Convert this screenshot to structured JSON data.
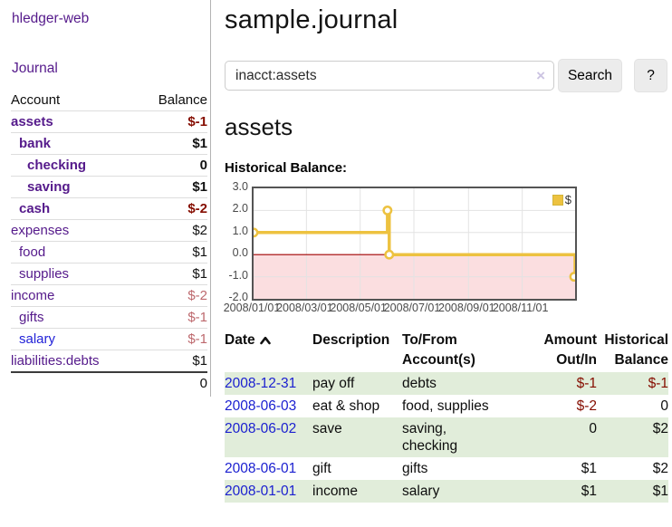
{
  "sidebar": {
    "brand": "hledger-web",
    "nav": {
      "journal": "Journal"
    },
    "accounts_table": {
      "headers": {
        "account": "Account",
        "balance": "Balance"
      },
      "rows": [
        {
          "name": "assets",
          "level": 1,
          "bold": true,
          "balance": "$-1",
          "tone": "neg-strong"
        },
        {
          "name": "bank",
          "level": 2,
          "bold": true,
          "balance": "$1",
          "tone": "pos"
        },
        {
          "name": "checking",
          "level": 3,
          "bold": true,
          "balance": "0",
          "tone": "pos"
        },
        {
          "name": "saving",
          "level": 3,
          "bold": true,
          "balance": "$1",
          "tone": "pos"
        },
        {
          "name": "cash",
          "level": 2,
          "bold": true,
          "balance": "$-2",
          "tone": "neg-strong"
        },
        {
          "name": "expenses",
          "level": 1,
          "bold": false,
          "balance": "$2",
          "tone": "pos"
        },
        {
          "name": "food",
          "level": 2,
          "bold": false,
          "balance": "$1",
          "tone": "pos"
        },
        {
          "name": "supplies",
          "level": 2,
          "bold": false,
          "balance": "$1",
          "tone": "pos"
        },
        {
          "name": "income",
          "level": 1,
          "bold": false,
          "balance": "$-2",
          "tone": "neg-soft"
        },
        {
          "name": "gifts",
          "level": 2,
          "bold": false,
          "balance": "$-1",
          "tone": "neg-soft"
        },
        {
          "name": "salary",
          "level": 2,
          "bold": false,
          "balance": "$-1",
          "tone": "neg-soft",
          "unvisited": true
        },
        {
          "name": "liabilities:debts",
          "level": 1,
          "bold": false,
          "balance": "$1",
          "tone": "pos"
        }
      ],
      "total": "0"
    }
  },
  "main": {
    "title": "sample.journal",
    "search": {
      "query": "inacct:assets",
      "clear_icon": "×",
      "search_label": "Search",
      "help_label": "?"
    },
    "account_heading": "assets",
    "chart_label": "Historical Balance:"
  },
  "chart_data": {
    "type": "line",
    "title": "Historical Balance",
    "step": true,
    "series": [
      {
        "name": "$",
        "color": "#edc240",
        "points": [
          {
            "date": "2008-01-01",
            "value": 1
          },
          {
            "date": "2008-06-01",
            "value": 2
          },
          {
            "date": "2008-06-03",
            "value": 0
          },
          {
            "date": "2008-12-31",
            "value": -1
          }
        ]
      }
    ],
    "x_domain": [
      "2008-01-01",
      "2008-12-31"
    ],
    "ylim": [
      -2,
      3
    ],
    "y_ticks": [
      3,
      2,
      1,
      0,
      -1,
      -2
    ],
    "y_tick_labels": [
      "3.0",
      "2.0",
      "1.0",
      "0.0",
      "-1.0",
      "-2.0"
    ],
    "x_ticks": [
      "2008/01/01",
      "2008/03/01",
      "2008/05/01",
      "2008/07/01",
      "2008/09/01",
      "2008/11/01"
    ],
    "legend": {
      "label": "$",
      "position": "top-right"
    },
    "grid": true,
    "colors": {
      "negative_region": "#fbdee0",
      "zero_line": "#a40000",
      "gridline": "#e3e3e3",
      "border": "#545454",
      "marker_fill": "#ffffff"
    }
  },
  "transactions": {
    "headers": {
      "date": "Date",
      "description": "Description",
      "accounts": "To/From Account(s)",
      "amount": "Amount Out/In",
      "balance": "Historical Balance"
    },
    "rows": [
      {
        "date": "2008-12-31",
        "description": "pay off",
        "accounts": "debts",
        "amount": "$-1",
        "amount_negative": true,
        "balance": "$-1",
        "balance_negative": true
      },
      {
        "date": "2008-06-03",
        "description": "eat & shop",
        "accounts": "food, supplies",
        "amount": "$-2",
        "amount_negative": true,
        "balance": "0",
        "balance_negative": false
      },
      {
        "date": "2008-06-02",
        "description": "save",
        "accounts": "saving,\nchecking",
        "amount": "0",
        "amount_negative": false,
        "balance": "$2",
        "balance_negative": false
      },
      {
        "date": "2008-06-01",
        "description": "gift",
        "accounts": "gifts",
        "amount": "$1",
        "amount_negative": false,
        "balance": "$2",
        "balance_negative": false
      },
      {
        "date": "2008-01-01",
        "description": "income",
        "accounts": "salary",
        "amount": "$1",
        "amount_negative": false,
        "balance": "$1",
        "balance_negative": false
      }
    ]
  }
}
